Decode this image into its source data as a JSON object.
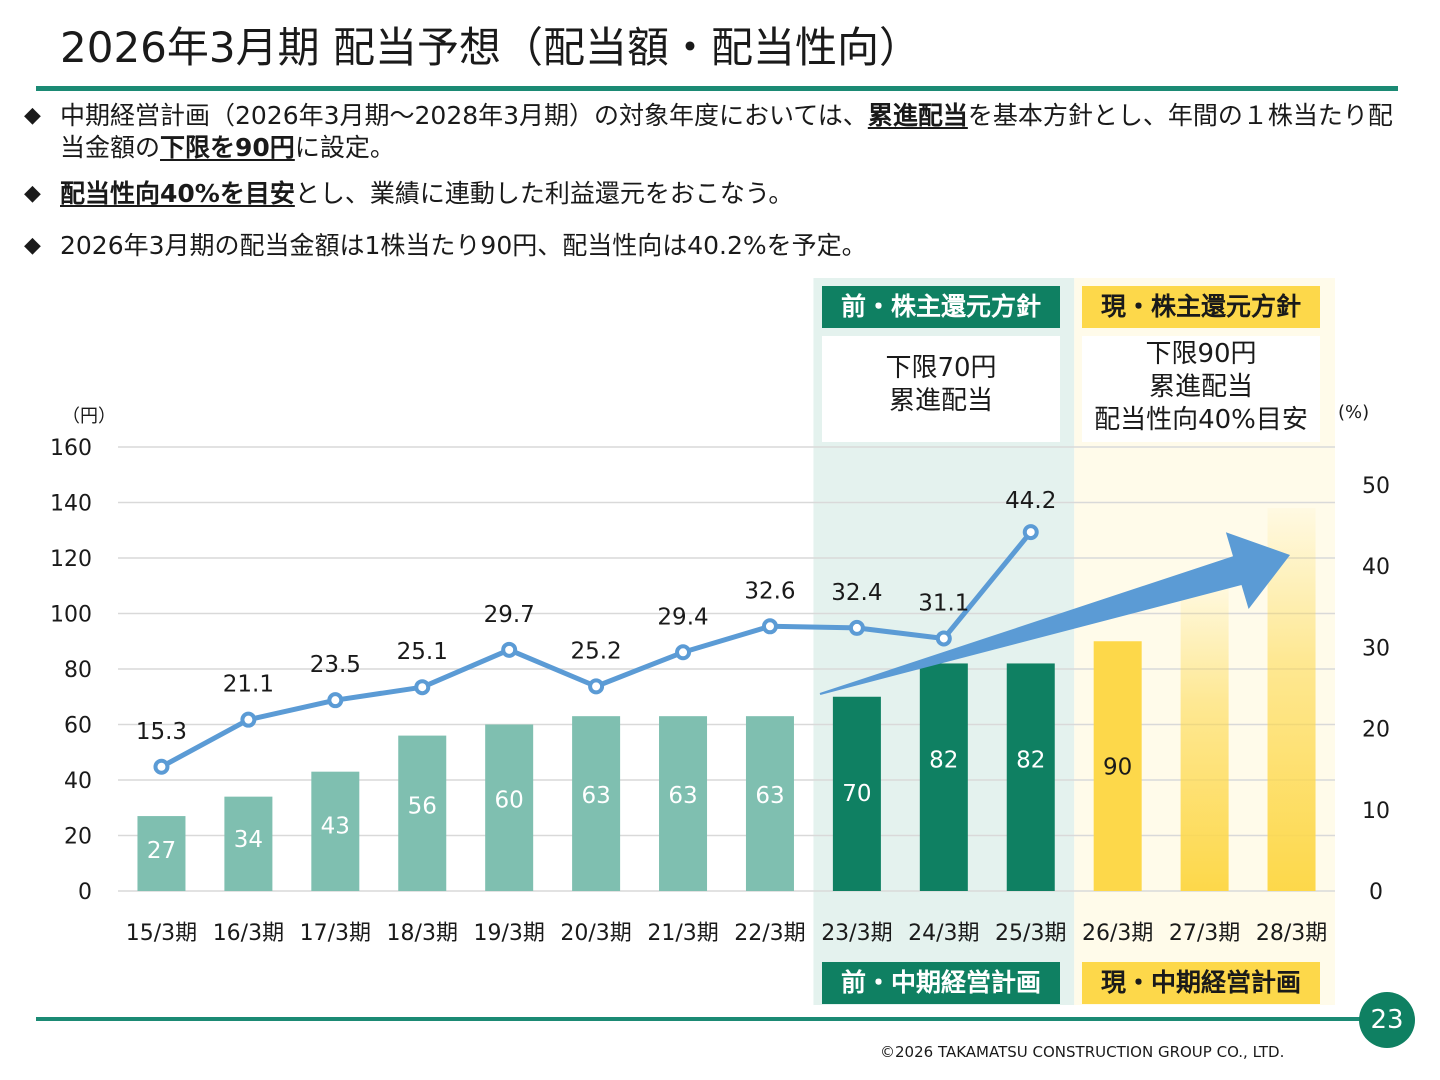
{
  "title": "2026年3月期 配当予想（配当額・配当性向）",
  "bullets": [
    {
      "mark": "◆",
      "pre": "中期経営計画（2026年3月期〜2028年3月期）の対象年度においては、",
      "emph": "累進配当",
      "mid": "を基本方針とし、年間の１株当たり配当金額の",
      "emph2": "下限を90円",
      "post": "に設定。"
    },
    {
      "mark": "◆",
      "emph": "配当性向40%を目安",
      "post": "とし、業績に連動した利益還元をおこなう。"
    },
    {
      "mark": "◆",
      "post": "2026年3月期の配当金額は1株当たり90円、配当性向は40.2%を予定。"
    }
  ],
  "panels": {
    "prev_policy_header": "前・株主還元方針",
    "prev_policy_body": [
      "下限70円",
      "累進配当"
    ],
    "curr_policy_header": "現・株主還元方針",
    "curr_policy_body": [
      "下限90円",
      "累進配当",
      "配当性向40%目安"
    ],
    "prev_plan_footer": "前・中期経営計画",
    "curr_plan_footer": "現・中期経営計画"
  },
  "units": {
    "left": "（円）",
    "right": "(%)"
  },
  "chart_data": {
    "type": "bar",
    "categories": [
      "15/3期",
      "16/3期",
      "17/3期",
      "18/3期",
      "19/3期",
      "20/3期",
      "21/3期",
      "22/3期",
      "23/3期",
      "24/3期",
      "25/3期",
      "26/3期",
      "27/3期",
      "28/3期"
    ],
    "series": [
      {
        "type": "bar",
        "values": [
          27,
          34,
          43,
          56,
          60,
          63,
          63,
          63,
          70,
          82,
          82,
          90,
          null,
          null
        ],
        "labels": [
          "27",
          "34",
          "43",
          "56",
          "60",
          "63",
          "63",
          "63",
          "70",
          "82",
          "82",
          "90",
          "",
          ""
        ]
      },
      {
        "type": "line",
        "axis": "right",
        "values": [
          15.3,
          21.1,
          23.5,
          25.1,
          29.7,
          25.2,
          29.4,
          32.6,
          32.4,
          31.1,
          44.2,
          null,
          null,
          null
        ]
      }
    ],
    "ylim_left": [
      0,
      160
    ],
    "yticks_left": [
      0,
      20,
      40,
      60,
      80,
      100,
      120,
      140,
      160
    ],
    "ylim_right": [
      0,
      50
    ],
    "yticks_right": [
      0,
      10,
      20,
      30,
      40,
      50
    ],
    "colors": {
      "bar_past": "#7fbfb0",
      "bar_prev_plan": "#0f8062",
      "bar_curr_plan": "#fdd84a",
      "line": "#5b9bd5",
      "arrow": "#5b9bd5",
      "panel_prev_bg": "#e4f2ee",
      "panel_curr_bg": "#fffbea"
    }
  },
  "page_number": "23",
  "copyright": "©2026 TAKAMATSU CONSTRUCTION GROUP CO., LTD."
}
